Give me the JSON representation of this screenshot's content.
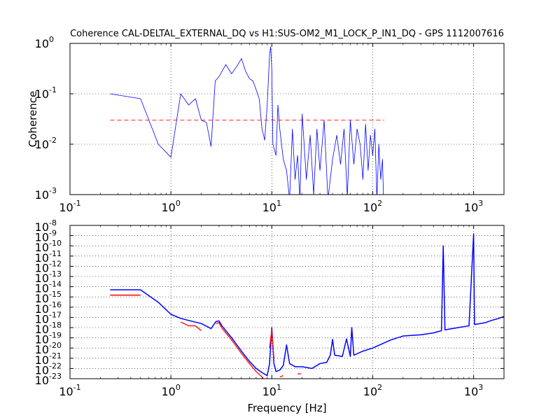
{
  "figure": {
    "title": "Coherence CAL-DELTAL_EXTERNAL_DQ vs H1:SUS-OM2_M1_LOCK_P_IN1_DQ - GPS 1112007616",
    "xlabel": "Frequency [Hz]"
  },
  "chart_data": [
    {
      "type": "line",
      "title": "Coherence CAL-DELTAL_EXTERNAL_DQ vs H1:SUS-OM2_M1_LOCK_P_IN1_DQ - GPS 1112007616",
      "xlabel": "",
      "ylabel": "Coherence",
      "xscale": "log",
      "yscale": "log",
      "xlim": [
        0.1,
        2000
      ],
      "ylim": [
        0.001,
        1
      ],
      "grid": true,
      "xticks": [
        "10",
        "10",
        "10",
        "10",
        "10"
      ],
      "xtick_exponents": [
        "-1",
        "0",
        "1",
        "2",
        "3"
      ],
      "xtick_values": [
        0.1,
        1,
        10,
        100,
        1000
      ],
      "yticks": [
        "10",
        "10",
        "10",
        "10"
      ],
      "ytick_exponents": [
        "-3",
        "-2",
        "-1",
        "0"
      ],
      "ytick_values": [
        0.001,
        0.01,
        0.1,
        1
      ],
      "colors": {
        "coherence": "#0000ff",
        "threshold": "#ff0000"
      },
      "series": [
        {
          "x": [
            0.25,
            0.5,
            0.75,
            1.0,
            1.25,
            1.5,
            1.75,
            2.0,
            2.25,
            2.5,
            2.75,
            3.0,
            3.5,
            4.0,
            4.5,
            5.0,
            5.5,
            6.0,
            6.5,
            7.0,
            7.5,
            8.0,
            8.5,
            9.0,
            9.5,
            9.75,
            10.0,
            10.25,
            11.0,
            11.5,
            12.0,
            13.0,
            14.0,
            15.0,
            16.0,
            17.0,
            18.0,
            19.0,
            20.0,
            22.0,
            24.0,
            26.0,
            28.0,
            30.0,
            33.0,
            36.0,
            40.0,
            44.0,
            48.0,
            52.0,
            56.0,
            60.0,
            65.0,
            70.0,
            75.0,
            80.0,
            85.0,
            90.0,
            95.0,
            100.0,
            105.0,
            110.0,
            115.0,
            120.0,
            125.0,
            128.0
          ],
          "values": [
            0.1,
            0.08,
            0.01,
            0.0055,
            0.1,
            0.06,
            0.08,
            0.03,
            0.027,
            0.009,
            0.18,
            0.22,
            0.38,
            0.25,
            0.35,
            0.5,
            0.28,
            0.2,
            0.18,
            0.12,
            0.08,
            0.02,
            0.012,
            0.06,
            0.6,
            0.85,
            0.3,
            0.01,
            0.006,
            0.06,
            0.02,
            0.005,
            0.003,
            0.0008,
            0.02,
            0.002,
            0.006,
            0.0008,
            0.04,
            0.002,
            0.015,
            0.001,
            0.02,
            0.003,
            0.03,
            0.0008,
            0.005,
            0.015,
            0.004,
            0.02,
            0.0009,
            0.03,
            0.004,
            0.02,
            0.01,
            0.002,
            0.025,
            0.003,
            0.015,
            0.006,
            0.02,
            0.0008,
            0.01,
            0.002,
            0.005,
            0.0008
          ]
        },
        {
          "x": [
            0.25,
            130
          ],
          "values": [
            0.03,
            0.03
          ]
        }
      ]
    },
    {
      "type": "line",
      "title": "",
      "xlabel": "Frequency [Hz]",
      "ylabel": "",
      "xscale": "log",
      "yscale": "log",
      "xlim": [
        0.1,
        2000
      ],
      "ylim": [
        1e-23,
        1e-08
      ],
      "grid": true,
      "xticks": [
        "10",
        "10",
        "10",
        "10",
        "10"
      ],
      "xtick_exponents": [
        "-1",
        "0",
        "1",
        "2",
        "3"
      ],
      "xtick_values": [
        0.1,
        1,
        10,
        100,
        1000
      ],
      "yticks": [
        "10",
        "10",
        "10",
        "10",
        "10",
        "10",
        "10",
        "10",
        "10",
        "10",
        "10",
        "10",
        "10",
        "10",
        "10",
        "10"
      ],
      "ytick_exponents": [
        "-23",
        "-22",
        "-21",
        "-20",
        "-19",
        "-18",
        "-17",
        "-16",
        "-15",
        "-14",
        "-13",
        "-12",
        "-11",
        "-10",
        "-9",
        "-8"
      ],
      "ytick_values": [
        1e-23,
        1e-22,
        1e-21,
        1e-20,
        1e-19,
        1e-18,
        1e-17,
        1e-16,
        1e-15,
        1e-14,
        1e-13,
        1e-12,
        1e-11,
        1e-10,
        1e-09,
        1e-08
      ],
      "colors": {
        "blue": "#0000ff",
        "red": "#ff0000"
      },
      "series": [
        {
          "x": [
            0.25,
            0.5,
            0.75,
            1.0,
            1.25,
            1.5,
            2.0,
            2.5,
            2.8,
            3.0,
            3.2,
            4.0,
            5.0,
            6.0,
            7.0,
            8.0,
            9.0,
            9.5,
            10.0,
            10.5,
            11.0,
            12.0,
            13.0,
            14.0,
            15.0,
            17.0,
            20.0,
            25.0,
            30.0,
            35.0,
            38.0,
            40.0,
            42.0,
            50.0,
            55.0,
            60.0,
            62.0,
            65.0,
            80.0,
            100.0,
            150.0,
            200.0,
            300.0,
            400.0,
            480.0,
            500.0,
            520.0,
            700.0,
            900.0,
            1000.0,
            1020.0,
            1300.0,
            1500.0,
            1700.0,
            2000.0
          ],
          "values": [
            5e-15,
            5e-15,
            3e-16,
            2e-17,
            8e-18,
            5e-18,
            2.5e-18,
            8e-19,
            4e-18,
            4.5e-18,
            1.5e-18,
            1e-19,
            5e-21,
            5e-22,
            1e-22,
            4e-23,
            2e-23,
            3e-22,
            1e-18,
            3e-22,
            5e-23,
            7e-23,
            2e-22,
            2e-20,
            3e-22,
            1.5e-22,
            1.5e-22,
            1e-22,
            3e-22,
            4e-22,
            2e-21,
            7e-20,
            2e-21,
            1.5e-21,
            8e-20,
            1.5e-21,
            1e-18,
            2e-21,
            5e-21,
            1e-20,
            6e-20,
            1.5e-19,
            2e-19,
            3e-19,
            5e-19,
            1e-10,
            6e-19,
            1e-18,
            1.5e-18,
            1.5e-09,
            2e-18,
            3e-18,
            5e-18,
            7e-18,
            1.2e-17
          ]
        },
        {
          "x": [
            0.25,
            0.5
          ],
          "values": [
            1.5e-15,
            1.5e-15
          ]
        },
        {
          "x": [
            1.25,
            1.5,
            1.75,
            2.0
          ],
          "values": [
            3.5e-18,
            1.5e-18,
            1.5e-18,
            5e-19
          ]
        },
        {
          "x": [
            2.8,
            3.0,
            3.2,
            4.0,
            5.0,
            6.0,
            7.0,
            8.0,
            8.7
          ],
          "values": [
            2.5e-18,
            3e-18,
            9e-19,
            6e-20,
            3e-21,
            3e-22,
            5e-23,
            1.5e-23,
            5e-24
          ]
        },
        {
          "x": [
            9.5,
            10.0,
            10.5
          ],
          "values": [
            1e-20,
            6e-19,
            1e-21
          ]
        },
        {
          "x": [
            12.0,
            13.0
          ],
          "values": [
            1.5e-23,
            2e-23
          ]
        },
        {
          "x": [
            18.0,
            19.5
          ],
          "values": [
            3e-23,
            3e-23
          ]
        }
      ]
    }
  ]
}
